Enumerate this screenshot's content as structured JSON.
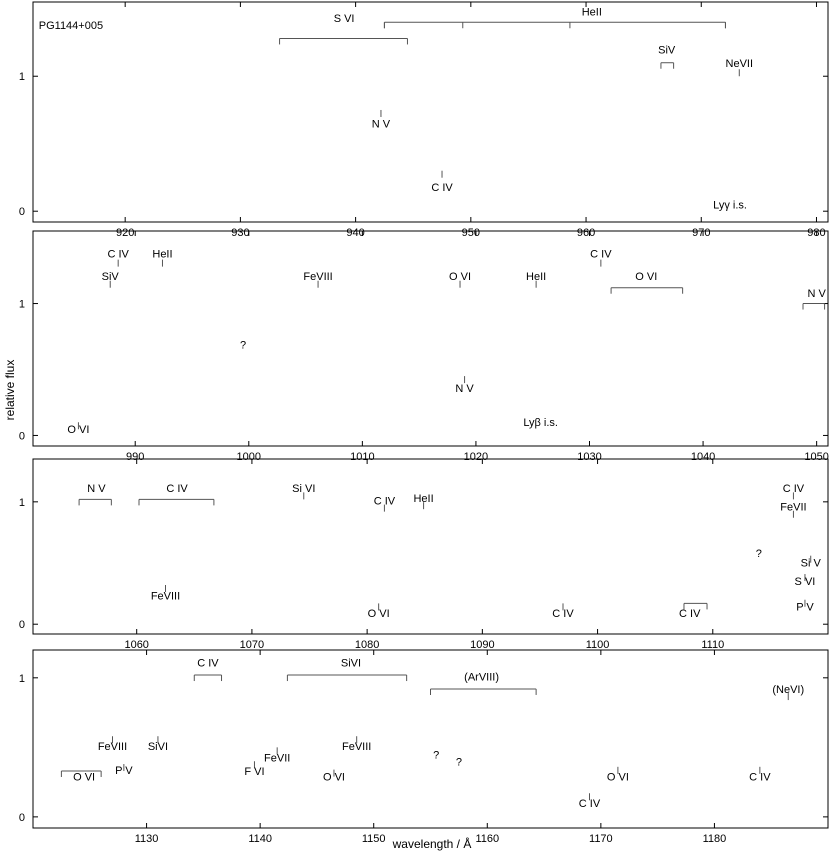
{
  "figure": {
    "object_label": "PG1144+005",
    "ylabel": "relative flux",
    "xlabel": "wavelength / Å"
  },
  "colors": {
    "observed": "#a0a0a0",
    "model_full": "#0000ff",
    "model_photospheric": "#ff0000",
    "axis": "#000000"
  },
  "chart_data": [
    {
      "type": "line",
      "panel": 1,
      "xlim": [
        912,
        981
      ],
      "ylim": [
        -0.08,
        1.55
      ],
      "x_ticks": [
        920,
        930,
        940,
        950,
        960,
        970,
        980
      ],
      "y_ticks": [
        0,
        1
      ],
      "series": [],
      "annotations": [
        {
          "label": "PG1144+005",
          "x": 912.5,
          "y": 1.35,
          "kind": "text"
        },
        {
          "label": "S VI",
          "x": 939,
          "y": 1.4,
          "kind": "bracket",
          "x1": 933.4,
          "x2": 944.5,
          "y_bar": 1.28
        },
        {
          "label": "HeII",
          "x": 960.5,
          "y": 1.45,
          "kind": "bracket",
          "x1": 942.5,
          "x2": 972.1,
          "y_bar": 1.4,
          "ticks": [
            942.5,
            949.3,
            958.6,
            972.1
          ]
        },
        {
          "label": "SiV",
          "x": 967.0,
          "y": 1.17,
          "kind": "bracket",
          "x1": 966.5,
          "x2": 967.6,
          "y_bar": 1.1
        },
        {
          "label": "NeVII",
          "x": 973.3,
          "y": 1.07,
          "kind": "tick",
          "y_tick": 1.0
        },
        {
          "label": "N V",
          "x": 942.2,
          "y": 0.62,
          "kind": "tick",
          "y_tick": 0.75
        },
        {
          "label": "C IV",
          "x": 947.5,
          "y": 0.15,
          "kind": "tick",
          "y_tick": 0.3
        },
        {
          "label": "Lyγ i.s.",
          "x": 972.5,
          "y": 0.02,
          "kind": "text"
        }
      ]
    },
    {
      "type": "line",
      "panel": 2,
      "xlim": [
        981,
        1051
      ],
      "ylim": [
        -0.08,
        1.55
      ],
      "x_ticks": [
        990,
        1000,
        1010,
        1020,
        1030,
        1040,
        1050
      ],
      "y_ticks": [
        0,
        1
      ],
      "series": [],
      "annotations": [
        {
          "label": "C IV",
          "x": 988.5,
          "y": 1.35,
          "kind": "tick",
          "y_tick": 1.28
        },
        {
          "label": "HeII",
          "x": 992.4,
          "y": 1.35,
          "kind": "tick",
          "y_tick": 1.28
        },
        {
          "label": "SiV",
          "x": 987.8,
          "y": 1.18,
          "kind": "tick",
          "y_tick": 1.12
        },
        {
          "label": "FeVIII",
          "x": 1006.1,
          "y": 1.18,
          "kind": "tick",
          "y_tick": 1.12
        },
        {
          "label": "O VI",
          "x": 1018.6,
          "y": 1.18,
          "kind": "tick",
          "y_tick": 1.12
        },
        {
          "label": "HeII",
          "x": 1025.3,
          "y": 1.18,
          "kind": "tick",
          "y_tick": 1.12
        },
        {
          "label": "C IV",
          "x": 1031.0,
          "y": 1.35,
          "kind": "tick",
          "y_tick": 1.28
        },
        {
          "label": "O VI",
          "x": 1035.0,
          "y": 1.18,
          "kind": "bracket",
          "x1": 1031.9,
          "x2": 1038.2,
          "y_bar": 1.12
        },
        {
          "label": "N V",
          "x": 1050.0,
          "y": 1.05,
          "kind": "bracket",
          "x1": 1048.8,
          "x2": 1050.7,
          "y_bar": 1.0
        },
        {
          "label": "?",
          "x": 999.5,
          "y": 0.66,
          "kind": "text"
        },
        {
          "label": "N V",
          "x": 1019.0,
          "y": 0.33,
          "kind": "tick",
          "y_tick": 0.45
        },
        {
          "label": "Lyβ i.s.",
          "x": 1025.7,
          "y": 0.07,
          "kind": "text"
        },
        {
          "label": "O VI",
          "x": 985.0,
          "y": 0.02,
          "kind": "tick",
          "y_tick": 0.1
        }
      ]
    },
    {
      "type": "line",
      "panel": 3,
      "xlim": [
        1051,
        1120
      ],
      "ylim": [
        -0.08,
        1.35
      ],
      "x_ticks": [
        1060,
        1070,
        1080,
        1090,
        1100,
        1110
      ],
      "y_ticks": [
        0,
        1
      ],
      "series": [],
      "annotations": [
        {
          "label": "N V",
          "x": 1056.5,
          "y": 1.08,
          "kind": "bracket",
          "x1": 1055.0,
          "x2": 1057.8,
          "y_bar": 1.02
        },
        {
          "label": "C IV",
          "x": 1063.5,
          "y": 1.08,
          "kind": "bracket",
          "x1": 1060.2,
          "x2": 1066.7,
          "y_bar": 1.02
        },
        {
          "label": "Si VI",
          "x": 1074.5,
          "y": 1.08,
          "kind": "tick",
          "y_tick": 1.02
        },
        {
          "label": "C IV",
          "x": 1081.5,
          "y": 0.98,
          "kind": "tick",
          "y_tick": 0.92
        },
        {
          "label": "HeII",
          "x": 1084.9,
          "y": 1.0,
          "kind": "tick",
          "y_tick": 0.94
        },
        {
          "label": "C IV",
          "x": 1117.0,
          "y": 1.08,
          "kind": "tick",
          "y_tick": 1.02
        },
        {
          "label": "FeVII",
          "x": 1117.0,
          "y": 0.93,
          "kind": "tick",
          "y_tick": 0.87
        },
        {
          "label": "?",
          "x": 1114.0,
          "y": 0.55,
          "kind": "text"
        },
        {
          "label": "FeVIII",
          "x": 1062.5,
          "y": 0.2,
          "kind": "tick",
          "y_tick": 0.32
        },
        {
          "label": "O VI",
          "x": 1081.0,
          "y": 0.06,
          "kind": "tick",
          "y_tick": 0.17
        },
        {
          "label": "C IV",
          "x": 1097.0,
          "y": 0.06,
          "kind": "tick",
          "y_tick": 0.17
        },
        {
          "label": "C IV",
          "x": 1108.0,
          "y": 0.06,
          "kind": "bracket",
          "x1": 1107.5,
          "x2": 1109.5,
          "y_bar": 0.17
        },
        {
          "label": "Si V",
          "x": 1118.5,
          "y": 0.47,
          "kind": "tick",
          "y_tick": 0.56
        },
        {
          "label": "S VI",
          "x": 1118.0,
          "y": 0.32,
          "kind": "tick",
          "y_tick": 0.41
        },
        {
          "label": "P V",
          "x": 1118.0,
          "y": 0.11,
          "kind": "tick",
          "y_tick": 0.2
        }
      ]
    },
    {
      "type": "line",
      "panel": 4,
      "xlim": [
        1120,
        1190
      ],
      "ylim": [
        -0.08,
        1.2
      ],
      "x_ticks": [
        1130,
        1140,
        1150,
        1160,
        1170,
        1180
      ],
      "y_ticks": [
        0,
        1
      ],
      "series": [],
      "annotations": [
        {
          "label": "C IV",
          "x": 1135.4,
          "y": 1.08,
          "kind": "bracket",
          "x1": 1134.2,
          "x2": 1136.6,
          "y_bar": 1.02
        },
        {
          "label": "SiVI",
          "x": 1148.0,
          "y": 1.08,
          "kind": "bracket",
          "x1": 1142.4,
          "x2": 1152.9,
          "y_bar": 1.02
        },
        {
          "label": "(ArVIII)",
          "x": 1159.5,
          "y": 0.98,
          "kind": "bracket",
          "x1": 1155.0,
          "x2": 1164.3,
          "y_bar": 0.92
        },
        {
          "label": "(NeVI)",
          "x": 1186.5,
          "y": 0.89,
          "kind": "tick",
          "y_tick": 0.84
        },
        {
          "label": "FeVIII",
          "x": 1127.0,
          "y": 0.48,
          "kind": "tick",
          "y_tick": 0.58
        },
        {
          "label": "SiVI",
          "x": 1131.0,
          "y": 0.48,
          "kind": "tick",
          "y_tick": 0.58
        },
        {
          "label": "P V",
          "x": 1128.0,
          "y": 0.31,
          "kind": "tick",
          "y_tick": 0.38
        },
        {
          "label": "O VI",
          "x": 1124.5,
          "y": 0.26,
          "kind": "bracket",
          "x1": 1122.5,
          "x2": 1126.0,
          "y_bar": 0.33
        },
        {
          "label": "FeVII",
          "x": 1141.5,
          "y": 0.4,
          "kind": "tick",
          "y_tick": 0.5
        },
        {
          "label": "F VI",
          "x": 1139.5,
          "y": 0.3,
          "kind": "tick",
          "y_tick": 0.4
        },
        {
          "label": "FeVIII",
          "x": 1148.5,
          "y": 0.48,
          "kind": "tick",
          "y_tick": 0.58
        },
        {
          "label": "O VI",
          "x": 1146.5,
          "y": 0.26,
          "kind": "tick",
          "y_tick": 0.34
        },
        {
          "label": "?",
          "x": 1155.5,
          "y": 0.42,
          "kind": "text"
        },
        {
          "label": "?",
          "x": 1157.5,
          "y": 0.37,
          "kind": "text"
        },
        {
          "label": "C IV",
          "x": 1169.0,
          "y": 0.07,
          "kind": "tick",
          "y_tick": 0.17
        },
        {
          "label": "O VI",
          "x": 1171.5,
          "y": 0.26,
          "kind": "tick",
          "y_tick": 0.36
        },
        {
          "label": "C IV",
          "x": 1184.0,
          "y": 0.26,
          "kind": "tick",
          "y_tick": 0.36
        }
      ]
    }
  ]
}
